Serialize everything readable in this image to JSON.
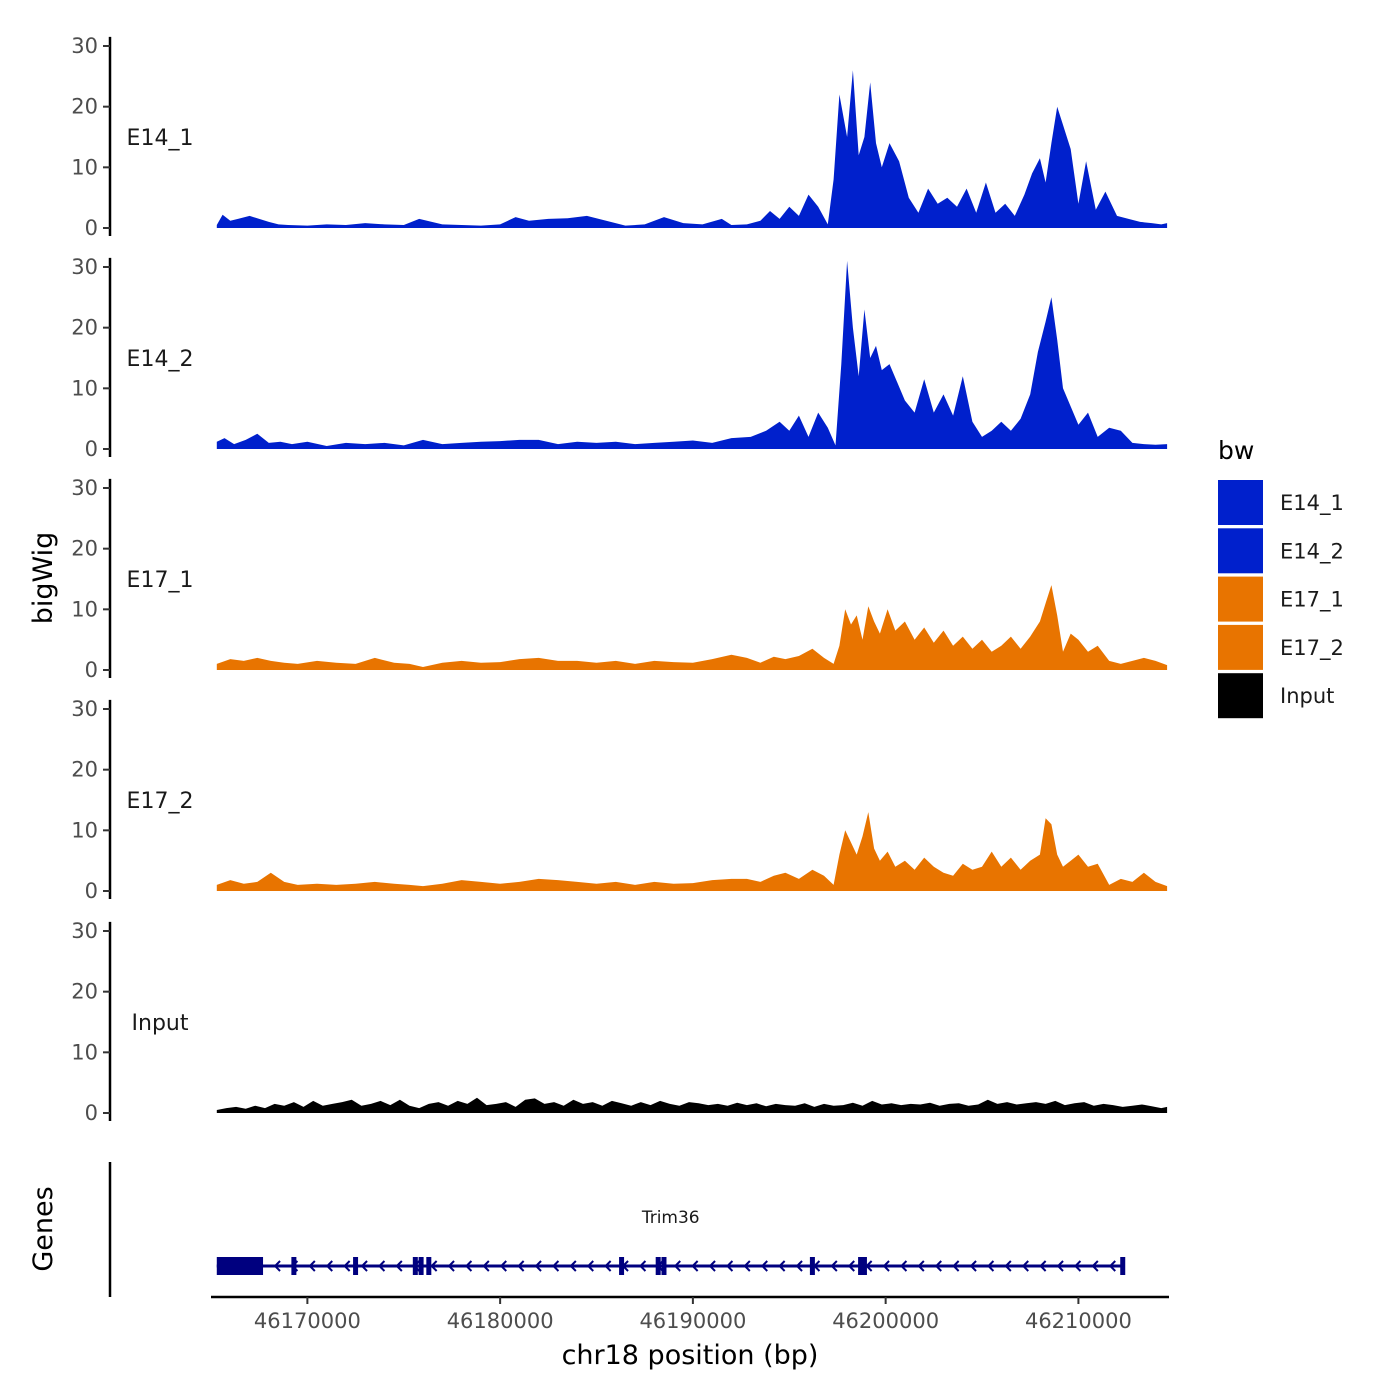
{
  "chart_data": {
    "type": "area",
    "title": "",
    "xlabel": "chr18 position (bp)",
    "ylabel": "bigWig",
    "gene_track_label": "Genes",
    "legend_title": "bw",
    "legend_position": "right",
    "grid": false,
    "xlim": [
      46165000,
      46214700
    ],
    "ylim": [
      0,
      30
    ],
    "x_ticks": [
      46170000,
      46180000,
      46190000,
      46200000,
      46210000
    ],
    "x_tick_labels": [
      "46170000",
      "46180000",
      "46190000",
      "46200000",
      "46210000"
    ],
    "y_ticks": [
      0,
      10,
      20,
      30
    ],
    "y_tick_labels": [
      "0",
      "10",
      "20",
      "30"
    ],
    "colors": {
      "E14_1": "#0020CC",
      "E14_2": "#0020CC",
      "E17_1": "#E87400",
      "E17_2": "#E87400",
      "Input": "#000000",
      "gene": "#00007F"
    },
    "legend": [
      "E14_1",
      "E14_2",
      "E17_1",
      "E17_2",
      "Input"
    ],
    "series": [
      {
        "name": "E14_1",
        "color": "#0020CC",
        "x": [
          46165300,
          46165600,
          46166000,
          46166400,
          46167000,
          46167500,
          46168000,
          46168500,
          46169000,
          46170000,
          46171000,
          46172000,
          46173000,
          46174000,
          46175000,
          46175800,
          46177000,
          46178000,
          46179000,
          46180000,
          46180800,
          46181500,
          46182500,
          46183500,
          46184500,
          46185500,
          46186500,
          46187500,
          46188500,
          46189500,
          46190500,
          46191500,
          46192000,
          46192800,
          46193500,
          46194000,
          46194500,
          46195000,
          46195500,
          46196000,
          46196500,
          46197000,
          46197300,
          46197600,
          46198000,
          46198300,
          46198600,
          46198900,
          46199200,
          46199500,
          46199800,
          46200200,
          46200700,
          46201200,
          46201700,
          46202200,
          46202700,
          46203200,
          46203700,
          46204200,
          46204700,
          46205200,
          46205700,
          46206200,
          46206700,
          46207200,
          46207600,
          46208000,
          46208300,
          46208600,
          46208900,
          46209200,
          46209600,
          46210000,
          46210400,
          46210900,
          46211400,
          46212000,
          46212600,
          46213200,
          46213800,
          46214300,
          46214600
        ],
        "y": [
          0.5,
          2.2,
          1.2,
          1.5,
          2,
          1.5,
          1,
          0.6,
          0.5,
          0.4,
          0.6,
          0.5,
          0.8,
          0.6,
          0.5,
          1.5,
          0.6,
          0.5,
          0.4,
          0.6,
          1.8,
          1.2,
          1.5,
          1.6,
          2,
          1.2,
          0.4,
          0.6,
          1.8,
          0.8,
          0.6,
          1.5,
          0.5,
          0.6,
          1.2,
          2.8,
          1.5,
          3.5,
          2,
          5.5,
          3.5,
          0.6,
          8,
          22,
          15,
          26,
          12,
          15,
          24,
          14,
          10,
          14,
          11,
          5,
          2.5,
          6.5,
          4,
          5,
          3.5,
          6.5,
          2.5,
          7.5,
          2.5,
          4,
          2,
          5.5,
          9,
          11.5,
          7.5,
          14,
          20,
          17,
          13,
          4,
          11,
          3,
          6,
          2,
          1.5,
          1,
          0.8,
          0.6,
          0.8
        ]
      },
      {
        "name": "E14_2",
        "color": "#0020CC",
        "x": [
          46165300,
          46165700,
          46166200,
          46166800,
          46167400,
          46168000,
          46168600,
          46169200,
          46170000,
          46171000,
          46172000,
          46173000,
          46174000,
          46175000,
          46176000,
          46177000,
          46178000,
          46179000,
          46180000,
          46181000,
          46182000,
          46183000,
          46184000,
          46185000,
          46186000,
          46187000,
          46188000,
          46189000,
          46190000,
          46191000,
          46192000,
          46193000,
          46193800,
          46194500,
          46195000,
          46195500,
          46196000,
          46196500,
          46197000,
          46197400,
          46197700,
          46198000,
          46198300,
          46198600,
          46198900,
          46199200,
          46199500,
          46199800,
          46200200,
          46200600,
          46201000,
          46201500,
          46202000,
          46202500,
          46203000,
          46203500,
          46204000,
          46204500,
          46205000,
          46205500,
          46206000,
          46206500,
          46207000,
          46207500,
          46207900,
          46208300,
          46208600,
          46208900,
          46209200,
          46209600,
          46210000,
          46210500,
          46211000,
          46211600,
          46212200,
          46212800,
          46213400,
          46214000,
          46214600
        ],
        "y": [
          1.2,
          1.8,
          0.8,
          1.5,
          2.5,
          1,
          1.2,
          0.8,
          1.2,
          0.5,
          1,
          0.8,
          1,
          0.6,
          1.5,
          0.8,
          1,
          1.2,
          1.3,
          1.5,
          1.5,
          0.8,
          1.2,
          1,
          1.2,
          0.8,
          1,
          1.2,
          1.4,
          1,
          1.8,
          2,
          3,
          4.5,
          3,
          5.5,
          2,
          6,
          3.5,
          0.6,
          14,
          31,
          20,
          12,
          23,
          15,
          17,
          13,
          14,
          11,
          8,
          6,
          11.5,
          6,
          9,
          5.5,
          12,
          4.5,
          2,
          3,
          4.5,
          3,
          5,
          9,
          16,
          21,
          25,
          18,
          10,
          7,
          4,
          6,
          2,
          3.5,
          3,
          1,
          0.8,
          0.7,
          0.8
        ]
      },
      {
        "name": "E17_1",
        "color": "#E87400",
        "x": [
          46165300,
          46166000,
          46166700,
          46167400,
          46168100,
          46168800,
          46169500,
          46170500,
          46171500,
          46172500,
          46173500,
          46174500,
          46175300,
          46176000,
          46177000,
          46178000,
          46179000,
          46180000,
          46181000,
          46182000,
          46183000,
          46184000,
          46185000,
          46186000,
          46187000,
          46188000,
          46189000,
          46190000,
          46191000,
          46192000,
          46192800,
          46193500,
          46194200,
          46194800,
          46195500,
          46196200,
          46196800,
          46197300,
          46197600,
          46197900,
          46198200,
          46198500,
          46198800,
          46199100,
          46199400,
          46199700,
          46200100,
          46200500,
          46201000,
          46201500,
          46202000,
          46202500,
          46203000,
          46203500,
          46204000,
          46204500,
          46205000,
          46205500,
          46206000,
          46206500,
          46207000,
          46207500,
          46208000,
          46208300,
          46208600,
          46208900,
          46209200,
          46209600,
          46210000,
          46210500,
          46211000,
          46211600,
          46212200,
          46212800,
          46213400,
          46214000,
          46214600
        ],
        "y": [
          1,
          1.8,
          1.5,
          2,
          1.5,
          1.2,
          1,
          1.5,
          1.2,
          1,
          2,
          1.2,
          1,
          0.5,
          1.2,
          1.5,
          1.2,
          1.3,
          1.8,
          2,
          1.5,
          1.5,
          1.2,
          1.5,
          1,
          1.5,
          1.3,
          1.2,
          1.8,
          2.5,
          2,
          1.2,
          2.2,
          1.8,
          2.3,
          3.5,
          2,
          1,
          4,
          10,
          7.5,
          9,
          5,
          10.5,
          8,
          6,
          10,
          6.5,
          8,
          5,
          7,
          4.5,
          6.5,
          4,
          5.5,
          3.5,
          5,
          3,
          4,
          5.5,
          3.5,
          5.5,
          8,
          11,
          14,
          9,
          3,
          6,
          5,
          3,
          4,
          1.5,
          1,
          1.5,
          2,
          1.5,
          0.8
        ]
      },
      {
        "name": "E17_2",
        "color": "#E87400",
        "x": [
          46165300,
          46166000,
          46166700,
          46167400,
          46168100,
          46168800,
          46169500,
          46170500,
          46171500,
          46172500,
          46173500,
          46174500,
          46175300,
          46176000,
          46177000,
          46178000,
          46179000,
          46180000,
          46181000,
          46182000,
          46183000,
          46184000,
          46185000,
          46186000,
          46187000,
          46188000,
          46189000,
          46190000,
          46191000,
          46192000,
          46192800,
          46193500,
          46194200,
          46194800,
          46195500,
          46196200,
          46196800,
          46197300,
          46197600,
          46197900,
          46198200,
          46198500,
          46198800,
          46199100,
          46199400,
          46199700,
          46200100,
          46200500,
          46201000,
          46201500,
          46202000,
          46202500,
          46203000,
          46203500,
          46204000,
          46204500,
          46205000,
          46205500,
          46206000,
          46206500,
          46207000,
          46207500,
          46208000,
          46208300,
          46208600,
          46208900,
          46209200,
          46209600,
          46210000,
          46210500,
          46211000,
          46211600,
          46212200,
          46212800,
          46213400,
          46214000,
          46214600
        ],
        "y": [
          1,
          1.8,
          1.2,
          1.5,
          3,
          1.5,
          1,
          1.2,
          1,
          1.2,
          1.5,
          1.2,
          1,
          0.8,
          1.2,
          1.8,
          1.5,
          1.2,
          1.5,
          2,
          1.8,
          1.5,
          1.2,
          1.5,
          1,
          1.5,
          1.2,
          1.3,
          1.8,
          2,
          2,
          1.5,
          2.5,
          3,
          2,
          3.5,
          2.5,
          1,
          6,
          10,
          8,
          6,
          9,
          13,
          7,
          5,
          6.5,
          4,
          5,
          3.5,
          5.5,
          4,
          3,
          2.5,
          4.5,
          3.5,
          4,
          6.5,
          4,
          5.5,
          3.5,
          5,
          6,
          12,
          11,
          6,
          4,
          5,
          6,
          4,
          4.5,
          1,
          2,
          1.5,
          3,
          1.5,
          0.8
        ]
      },
      {
        "name": "Input",
        "color": "#000000",
        "x": [
          46165300,
          46165800,
          46166300,
          46166800,
          46167300,
          46167800,
          46168300,
          46168800,
          46169300,
          46169800,
          46170300,
          46170800,
          46171300,
          46171800,
          46172300,
          46172800,
          46173300,
          46173800,
          46174300,
          46174800,
          46175300,
          46175800,
          46176300,
          46176800,
          46177300,
          46177800,
          46178300,
          46178800,
          46179300,
          46179800,
          46180300,
          46180800,
          46181300,
          46181800,
          46182300,
          46182800,
          46183300,
          46183800,
          46184300,
          46184800,
          46185300,
          46185800,
          46186300,
          46186800,
          46187300,
          46187800,
          46188300,
          46188800,
          46189300,
          46189800,
          46190300,
          46190800,
          46191300,
          46191800,
          46192300,
          46192800,
          46193300,
          46193800,
          46194300,
          46194800,
          46195300,
          46195800,
          46196300,
          46196800,
          46197300,
          46197800,
          46198300,
          46198800,
          46199300,
          46199800,
          46200300,
          46200800,
          46201300,
          46201800,
          46202300,
          46202800,
          46203300,
          46203800,
          46204300,
          46204800,
          46205300,
          46205800,
          46206300,
          46206800,
          46207300,
          46207800,
          46208300,
          46208800,
          46209300,
          46209800,
          46210300,
          46210800,
          46211300,
          46211800,
          46212300,
          46212800,
          46213300,
          46213800,
          46214300,
          46214600
        ],
        "y": [
          0.5,
          0.8,
          1,
          0.7,
          1.2,
          0.8,
          1.5,
          1.2,
          1.8,
          1,
          2,
          1.2,
          1.5,
          1.8,
          2.2,
          1.2,
          1.5,
          2,
          1.3,
          2.2,
          1.2,
          0.8,
          1.5,
          1.8,
          1.2,
          2,
          1.5,
          2.5,
          1.3,
          1.5,
          1.8,
          1,
          2.2,
          2.4,
          1.5,
          1.8,
          1.2,
          2.2,
          1.5,
          1.8,
          1.2,
          2,
          1.6,
          1.2,
          1.8,
          1.3,
          2,
          1.5,
          1.2,
          1.8,
          1.6,
          1.3,
          1.5,
          1.2,
          1.7,
          1.3,
          1.6,
          1.1,
          1.5,
          1.3,
          1.2,
          1.6,
          1,
          1.5,
          1.2,
          1.3,
          1.7,
          1.2,
          2,
          1.4,
          1.6,
          1.3,
          1.5,
          1.4,
          1.7,
          1.2,
          1.5,
          1.6,
          1.2,
          1.4,
          2.2,
          1.5,
          1.8,
          1.4,
          1.6,
          1.8,
          1.5,
          2,
          1.3,
          1.6,
          1.8,
          1.2,
          1.5,
          1.3,
          1,
          1.2,
          1.4,
          1.1,
          0.8,
          1
        ]
      }
    ],
    "gene": {
      "name": "Trim36",
      "start": 46165300,
      "end": 46212400,
      "strand": "-",
      "thick_start": 46165300,
      "thick_end": 46167700,
      "exons": [
        46169300,
        46172500,
        46175600,
        46175900,
        46176300,
        46186300,
        46188200,
        46188500,
        46196200,
        46198700,
        46198900,
        46212300
      ]
    }
  }
}
